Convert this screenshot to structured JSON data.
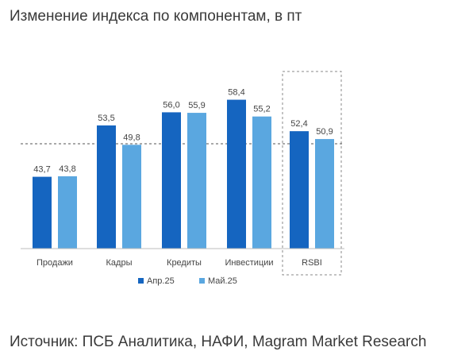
{
  "title": "Изменение индекса по компонентам, в пт",
  "source": "Источник: ПСБ Аналитика, НАФИ, Magram Market Research",
  "chart_data": {
    "type": "bar",
    "categories": [
      "Продажи",
      "Кадры",
      "Кредиты",
      "Инвестиции",
      "RSBI"
    ],
    "series": [
      {
        "name": "Апр.25",
        "values": [
          43.7,
          53.5,
          56.0,
          58.4,
          52.4
        ],
        "color": "#1565c0"
      },
      {
        "name": "Май.25",
        "values": [
          43.8,
          49.8,
          55.9,
          55.2,
          50.9
        ],
        "color": "#5aa7e0"
      }
    ],
    "value_labels": [
      [
        "43,7",
        "53,5",
        "56,0",
        "58,4",
        "52,4"
      ],
      [
        "43,8",
        "49,8",
        "55,9",
        "55,2",
        "50,9"
      ]
    ],
    "reference_line": 50,
    "highlighted_category": "RSBI",
    "legend_position": "bottom",
    "grid": false
  }
}
